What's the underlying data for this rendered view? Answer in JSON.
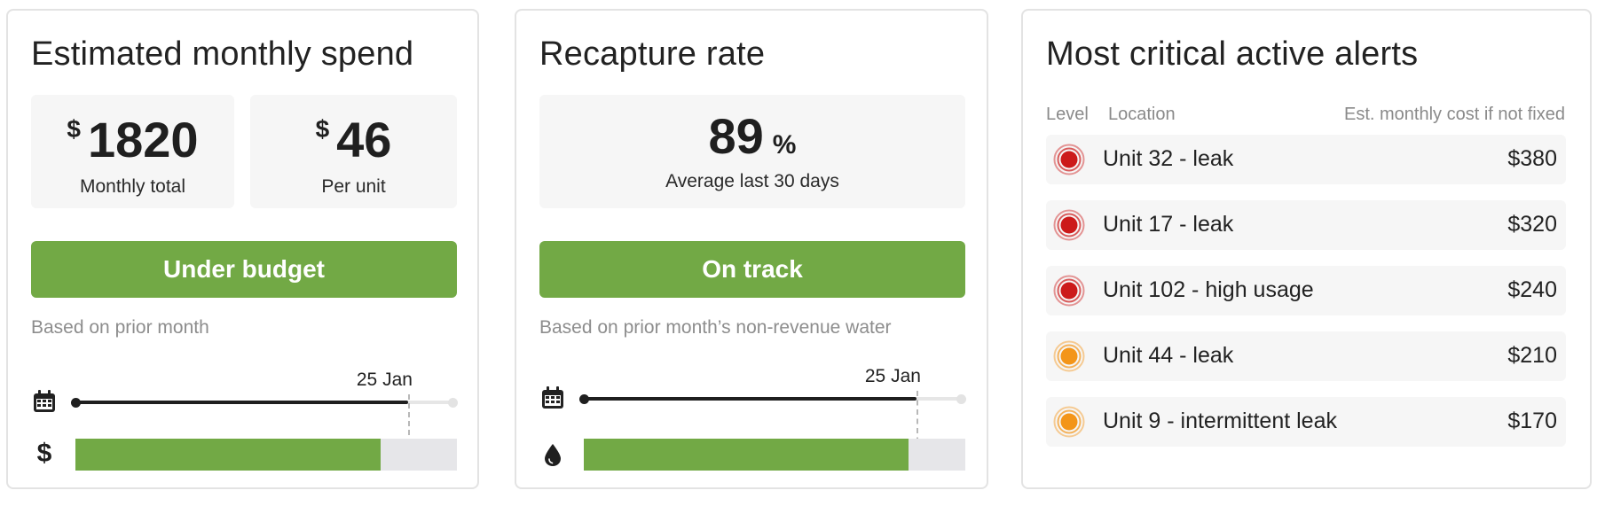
{
  "spend": {
    "title": "Estimated monthly spend",
    "currency_symbol": "$",
    "monthly_total": "1820",
    "monthly_total_label": "Monthly total",
    "per_unit": "46",
    "per_unit_label": "Per unit",
    "status": "Under budget",
    "status_color": "#72a945",
    "basis": "Based on prior month",
    "timeline_date": "25 Jan",
    "timeline_icon": "calendar-icon",
    "fill_icon": "dollar-icon",
    "fill_symbol": "$",
    "time_progress": 0.88,
    "spend_progress": 0.8
  },
  "recapture": {
    "title": "Recapture rate",
    "value": "89",
    "unit": "%",
    "label": "Average last 30 days",
    "status": "On track",
    "status_color": "#72a945",
    "basis": "Based on prior month’s non-revenue water",
    "timeline_date": "25 Jan",
    "timeline_icon": "calendar-icon",
    "fill_icon": "water-drop-icon",
    "time_progress": 0.88,
    "recapture_progress": 0.85
  },
  "alerts": {
    "title": "Most critical active alerts",
    "columns": {
      "level": "Level",
      "location": "Location",
      "cost": "Est. monthly cost if not fixed"
    },
    "level_colors": {
      "critical": "#cc1a1a",
      "warning": "#f39519"
    },
    "rows": [
      {
        "level": "critical",
        "location": "Unit 32 - leak",
        "cost": "$380"
      },
      {
        "level": "critical",
        "location": "Unit 17 - leak",
        "cost": "$320"
      },
      {
        "level": "critical",
        "location": "Unit 102 - high usage",
        "cost": "$240"
      },
      {
        "level": "warning",
        "location": "Unit 44 - leak",
        "cost": "$210"
      },
      {
        "level": "warning",
        "location": "Unit 9 - intermittent leak",
        "cost": "$170"
      }
    ]
  }
}
